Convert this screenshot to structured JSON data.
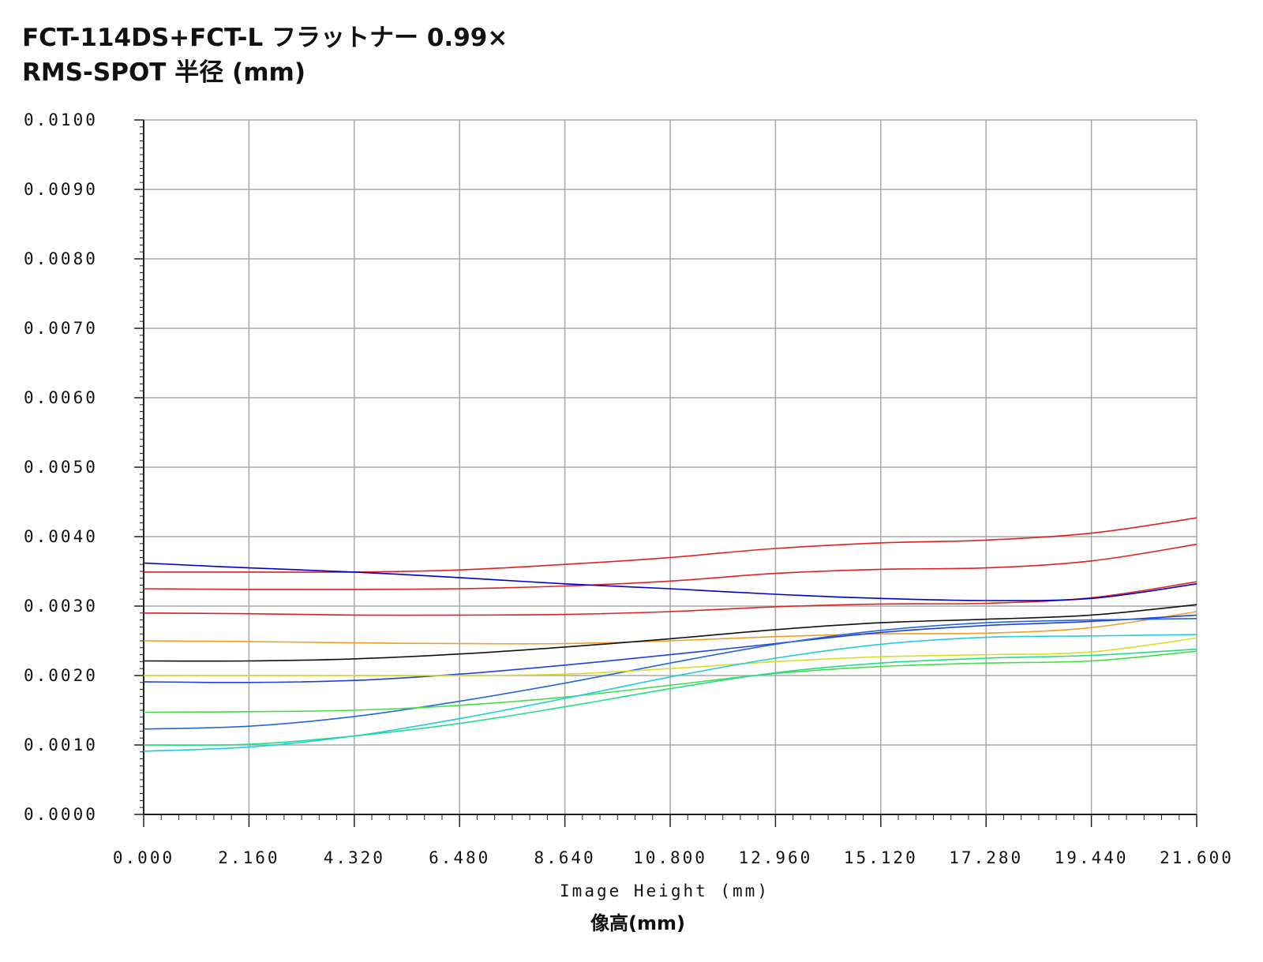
{
  "chart_data": {
    "type": "line",
    "title": "FCT-114DS+FCT-L フラットナー 0.99×",
    "subtitle": "RMS-SPOT 半径 (mm)",
    "xlabel": "Image Height  (mm)",
    "xlabel_jp": "像高(mm)",
    "ylabel": "",
    "xlim": [
      0,
      21.6
    ],
    "ylim": [
      0,
      0.01
    ],
    "grid": true,
    "x_ticks": [
      "0.000",
      "2.160",
      "4.320",
      "6.480",
      "8.640",
      "10.800",
      "12.960",
      "15.120",
      "17.280",
      "19.440",
      "21.600"
    ],
    "y_ticks": [
      "0.0000",
      "0.0010",
      "0.0020",
      "0.0030",
      "0.0040",
      "0.0050",
      "0.0060",
      "0.0070",
      "0.0080",
      "0.0090",
      "0.0100"
    ],
    "x": [
      0,
      2.16,
      4.32,
      6.48,
      8.64,
      10.8,
      12.96,
      15.12,
      17.28,
      19.44,
      21.6
    ],
    "series": [
      {
        "color": "#dd2222",
        "values": [
          0.00349,
          0.00349,
          0.00349,
          0.00352,
          0.0036,
          0.0037,
          0.00383,
          0.00391,
          0.00395,
          0.00405,
          0.00427
        ]
      },
      {
        "color": "#dd2222",
        "values": [
          0.00325,
          0.00324,
          0.00324,
          0.00325,
          0.00329,
          0.00336,
          0.00347,
          0.00353,
          0.00355,
          0.00365,
          0.00389
        ]
      },
      {
        "color": "#dd2222",
        "values": [
          0.0029,
          0.00289,
          0.00287,
          0.00287,
          0.00288,
          0.00292,
          0.00299,
          0.00303,
          0.00304,
          0.00312,
          0.00335
        ]
      },
      {
        "color": "#0000cc",
        "values": [
          0.00362,
          0.00355,
          0.00349,
          0.00341,
          0.00332,
          0.00325,
          0.00317,
          0.00311,
          0.00308,
          0.00311,
          0.00332
        ]
      },
      {
        "color": "#f0a020",
        "values": [
          0.0025,
          0.00249,
          0.00247,
          0.00246,
          0.00246,
          0.0025,
          0.00256,
          0.0026,
          0.00261,
          0.00269,
          0.00292
        ]
      },
      {
        "color": "#111111",
        "values": [
          0.00221,
          0.00221,
          0.00224,
          0.00231,
          0.00241,
          0.00253,
          0.00266,
          0.00276,
          0.00281,
          0.00287,
          0.00302
        ]
      },
      {
        "color": "#2040dd",
        "values": [
          0.00191,
          0.0019,
          0.00193,
          0.00202,
          0.00215,
          0.0023,
          0.00246,
          0.00262,
          0.00272,
          0.00278,
          0.00287
        ]
      },
      {
        "color": "#2266dd",
        "values": [
          0.00123,
          0.00127,
          0.00141,
          0.00163,
          0.00189,
          0.00218,
          0.00245,
          0.00265,
          0.00276,
          0.0028,
          0.00282
        ]
      },
      {
        "color": "#d8e020",
        "values": [
          0.002,
          0.002,
          0.002,
          0.002,
          0.00202,
          0.0021,
          0.0022,
          0.00227,
          0.0023,
          0.00234,
          0.00254
        ]
      },
      {
        "color": "#44dd44",
        "values": [
          0.00147,
          0.00148,
          0.0015,
          0.00157,
          0.00169,
          0.00186,
          0.00203,
          0.00213,
          0.00218,
          0.00221,
          0.00235
        ]
      },
      {
        "color": "#20ccdd",
        "values": [
          0.00091,
          0.00097,
          0.00113,
          0.00138,
          0.00167,
          0.00198,
          0.00225,
          0.00245,
          0.00255,
          0.00257,
          0.00259
        ]
      },
      {
        "color": "#22dd88",
        "values": [
          0.001,
          0.00101,
          0.00113,
          0.00131,
          0.00155,
          0.00181,
          0.00204,
          0.00218,
          0.00225,
          0.00229,
          0.00238
        ]
      }
    ]
  }
}
